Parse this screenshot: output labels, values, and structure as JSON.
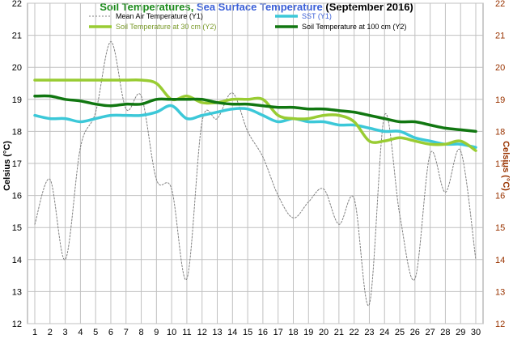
{
  "chart_data": {
    "type": "line",
    "title": {
      "part1": "Soil Temperatures, ",
      "part2": "Sea Surface Temperature",
      "part3": " (September 2016)",
      "color1": "#1a8a1a",
      "color2": "#3a5fd8",
      "color3": "#000000"
    },
    "ylabel_left": "Celsius (°C)",
    "ylabel_right": "Celsius (°C)",
    "ylim": [
      12,
      22
    ],
    "y_ticks": [
      "12",
      "13",
      "14",
      "15",
      "16",
      "17",
      "18",
      "19",
      "20",
      "21",
      "22"
    ],
    "x": [
      1,
      2,
      3,
      4,
      5,
      6,
      7,
      8,
      9,
      10,
      11,
      12,
      13,
      14,
      15,
      16,
      17,
      18,
      19,
      20,
      21,
      22,
      23,
      24,
      25,
      26,
      27,
      28,
      29,
      30
    ],
    "x_ticks": [
      "1",
      "2",
      "3",
      "4",
      "5",
      "6",
      "7",
      "8",
      "9",
      "10",
      "11",
      "12",
      "13",
      "14",
      "15",
      "16",
      "17",
      "18",
      "19",
      "20",
      "21",
      "22",
      "23",
      "24",
      "25",
      "26",
      "27",
      "28",
      "29",
      "30"
    ],
    "grid": true,
    "legend_position": "top",
    "series": [
      {
        "name": "Mean Air Temperature (Y1)",
        "color": "#808080",
        "dashed": true,
        "width": 1,
        "values": [
          15.1,
          16.5,
          14.0,
          17.5,
          18.6,
          20.8,
          18.7,
          19.1,
          16.5,
          16.2,
          13.4,
          18.3,
          18.4,
          19.2,
          18.0,
          17.2,
          16.0,
          15.3,
          15.8,
          16.2,
          15.1,
          15.9,
          12.6,
          18.5,
          15.4,
          13.4,
          17.3,
          16.1,
          17.4,
          14.0
        ]
      },
      {
        "name": "SST (Y1)",
        "color": "#3cc8d8",
        "dashed": false,
        "width": 3.5,
        "values": [
          18.5,
          18.4,
          18.4,
          18.3,
          18.4,
          18.5,
          18.5,
          18.5,
          18.6,
          18.8,
          18.4,
          18.5,
          18.6,
          18.7,
          18.7,
          18.5,
          18.3,
          18.4,
          18.3,
          18.3,
          18.2,
          18.2,
          18.1,
          18.0,
          18.0,
          17.8,
          17.7,
          17.6,
          17.6,
          17.5
        ]
      },
      {
        "name": "Soil Temperature at 30 cm (Y2)",
        "color": "#99cc33",
        "dashed": false,
        "width": 3.5,
        "values": [
          19.6,
          19.6,
          19.6,
          19.6,
          19.6,
          19.6,
          19.6,
          19.6,
          19.5,
          19.0,
          19.1,
          18.9,
          18.9,
          19.0,
          19.0,
          19.0,
          18.5,
          18.4,
          18.4,
          18.5,
          18.5,
          18.3,
          17.7,
          17.7,
          17.8,
          17.7,
          17.6,
          17.6,
          17.7,
          17.4
        ]
      },
      {
        "name": "Soil Temperature at 100 cm (Y2)",
        "color": "#117711",
        "dashed": false,
        "width": 3.5,
        "values": [
          19.1,
          19.1,
          19.0,
          18.95,
          18.85,
          18.8,
          18.85,
          18.85,
          19.0,
          19.0,
          19.0,
          19.0,
          18.9,
          18.85,
          18.85,
          18.8,
          18.75,
          18.75,
          18.7,
          18.7,
          18.65,
          18.6,
          18.5,
          18.4,
          18.3,
          18.3,
          18.2,
          18.1,
          18.05,
          18.0
        ]
      }
    ]
  }
}
